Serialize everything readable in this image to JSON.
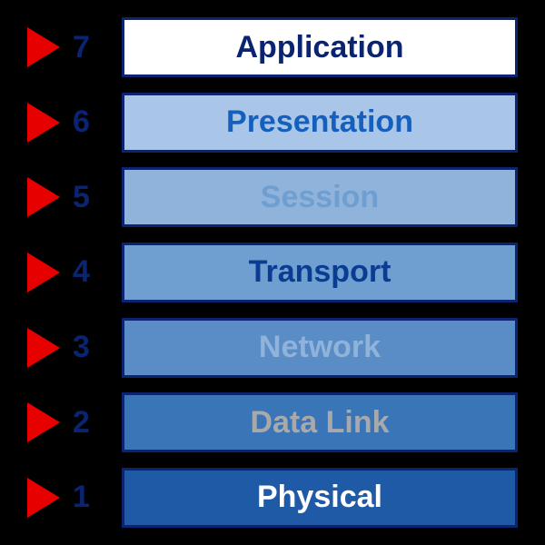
{
  "diagram": {
    "type": "infographic",
    "background_color": "#000000",
    "border_color": "#0a2472",
    "arrow_color": "#e60000",
    "number_color": "#0a2472",
    "number_fontsize": 34,
    "label_fontsize": 34,
    "box_border_width": 3,
    "layers": [
      {
        "number": "7",
        "label": "Application",
        "bg": "#ffffff",
        "fg": "#0a2472"
      },
      {
        "number": "6",
        "label": "Presentation",
        "bg": "#a9c6e8",
        "fg": "#1560bd"
      },
      {
        "number": "5",
        "label": "Session",
        "bg": "#8fb3db",
        "fg": "#6f9ed0"
      },
      {
        "number": "4",
        "label": "Transport",
        "bg": "#6f9ed0",
        "fg": "#0a3d91"
      },
      {
        "number": "3",
        "label": "Network",
        "bg": "#5a8cc5",
        "fg": "#8fb3db"
      },
      {
        "number": "2",
        "label": "Data Link",
        "bg": "#3a75b8",
        "fg": "#a9a9a9"
      },
      {
        "number": "1",
        "label": "Physical",
        "bg": "#1e5aa6",
        "fg": "#ffffff"
      }
    ]
  }
}
